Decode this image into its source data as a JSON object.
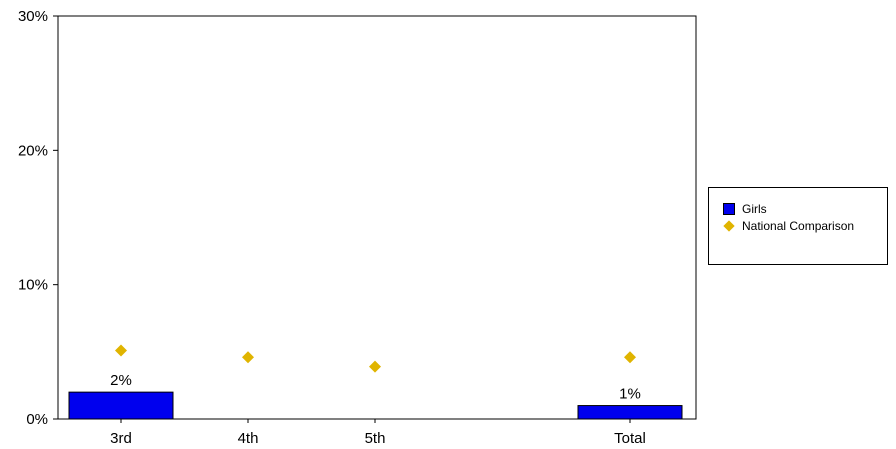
{
  "chart_data": {
    "type": "bar",
    "categories": [
      "3rd",
      "4th",
      "5th",
      "Total"
    ],
    "series": [
      {
        "name": "Girls",
        "kind": "bar",
        "color": "#0000ee",
        "values": [
          2,
          0,
          0,
          1
        ],
        "labels": [
          "2%",
          "",
          "",
          "1%"
        ]
      },
      {
        "name": "National Comparison",
        "kind": "marker",
        "marker": "diamond",
        "color": "#e0b400",
        "values": [
          5.1,
          4.6,
          3.9,
          4.6
        ]
      }
    ],
    "ylim": [
      0,
      30
    ],
    "yticks": [
      0,
      10,
      20,
      30
    ],
    "ytick_labels": [
      "0%",
      "10%",
      "20%",
      "30%"
    ],
    "grid": false,
    "legend_position": "right"
  }
}
